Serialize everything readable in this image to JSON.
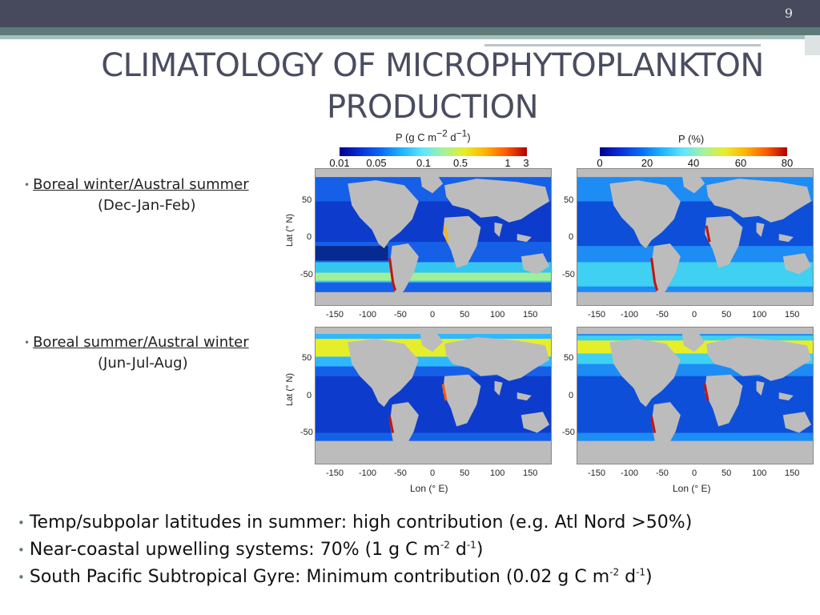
{
  "slide_number": "9",
  "title_line1": "CLIMATOLOGY OF MICROPHYTOPLANKTON",
  "title_line2": "PRODUCTION",
  "seasons": [
    {
      "label": "Boreal winter/Austral summer",
      "months": "(Dec-Jan-Feb)"
    },
    {
      "label": "Boreal summer/Austral winter",
      "months": "(Jun-Jul-Aug)"
    }
  ],
  "colorbar_left": {
    "title": "P (g C m-2 d-1)",
    "ticks": [
      "0.01",
      "0.05",
      "0.1",
      "0.5",
      "1",
      "3"
    ]
  },
  "colorbar_right": {
    "title": "P (%)",
    "ticks": [
      "0",
      "20",
      "40",
      "60",
      "80"
    ]
  },
  "lat_label": "Lat (° N)",
  "lon_label": "Lon (° E)",
  "lat_ticks": [
    "50",
    "0",
    "-50"
  ],
  "lon_ticks": [
    "-150",
    "-100",
    "-50",
    "0",
    "50",
    "100",
    "150"
  ],
  "colors": {
    "land": "#bcbcbc",
    "ocean_low": "#0b3fd0",
    "ocean_mid": "#2aa9ff",
    "high": "#f7e01e",
    "peak": "#c8140c",
    "accent": "#5e7b7a"
  },
  "bullets": {
    "b1": "Temp/subpolar latitudes in summer: high contribution (e.g. Atl Nord >50%)",
    "b2_pre": "Near-coastal upwelling systems: 70% (1 g C m",
    "b2_sup1": "-2",
    "b2_mid": " d",
    "b2_sup2": "-1",
    "b2_post": ")",
    "b3_pre": "South Pacific Subtropical Gyre: Minimum contribution (0.02 g C m",
    "b3_sup1": "-2",
    "b3_mid": " d",
    "b3_sup2": "-1",
    "b3_post": ")"
  }
}
